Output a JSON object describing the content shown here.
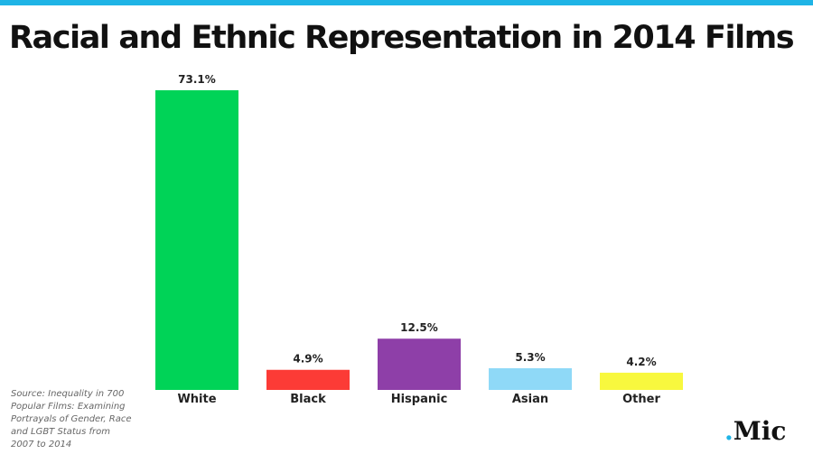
{
  "header": {
    "title": "Racial and Ethnic Representation in 2014 Films"
  },
  "chart_data": {
    "type": "bar",
    "title": "Racial and Ethnic Representation in 2014 Films",
    "xlabel": "",
    "ylabel": "",
    "ylim": [
      0,
      73.1
    ],
    "grid": false,
    "categories": [
      "White",
      "Black",
      "Hispanic",
      "Asian",
      "Other"
    ],
    "values": [
      73.1,
      4.9,
      12.5,
      5.3,
      4.2
    ],
    "value_labels": [
      "73.1%",
      "4.9%",
      "12.5%",
      "5.3%",
      "4.2%"
    ],
    "colors": [
      "#00d357",
      "#fc3b36",
      "#8e3fa8",
      "#8fd9f7",
      "#f8f83e"
    ]
  },
  "source": {
    "text": "Source: Inequality in 700 Popular Films: Examining Portrayals of Gender, Race and LGBT Status from 2007 to 2014"
  },
  "branding": {
    "logo_dot": ".",
    "logo_text": "Mic",
    "accent_color": "#1fb4e6"
  }
}
